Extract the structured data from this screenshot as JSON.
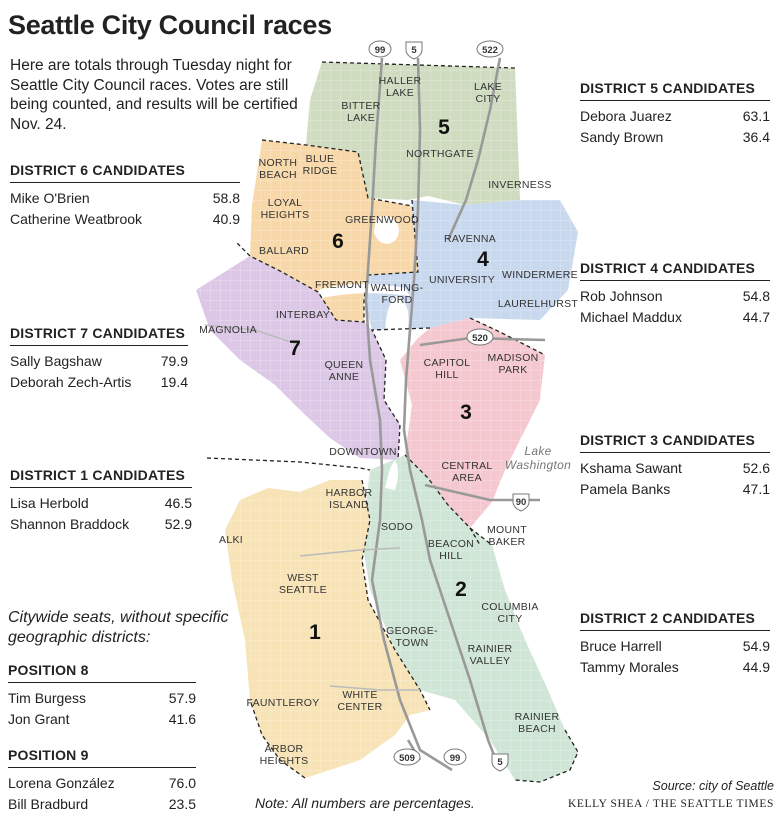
{
  "title": "Seattle City Council races",
  "intro": "Here are totals through Tuesday night for Seattle City Council races. Votes are still being counted, and results will be certified Nov. 24.",
  "districts": {
    "d5": {
      "header": "DISTRICT 5 CANDIDATES",
      "candidates": [
        {
          "name": "Debora Juarez",
          "pct": "63.1"
        },
        {
          "name": "Sandy Brown",
          "pct": "36.4"
        }
      ]
    },
    "d6": {
      "header": "DISTRICT 6 CANDIDATES",
      "candidates": [
        {
          "name": "Mike O'Brien",
          "pct": "58.8"
        },
        {
          "name": "Catherine Weatbrook",
          "pct": "40.9"
        }
      ]
    },
    "d4": {
      "header": "DISTRICT 4 CANDIDATES",
      "candidates": [
        {
          "name": "Rob Johnson",
          "pct": "54.8"
        },
        {
          "name": "Michael Maddux",
          "pct": "44.7"
        }
      ]
    },
    "d7": {
      "header": "DISTRICT 7 CANDIDATES",
      "candidates": [
        {
          "name": "Sally Bagshaw",
          "pct": "79.9"
        },
        {
          "name": "Deborah Zech-Artis",
          "pct": "19.4"
        }
      ]
    },
    "d3": {
      "header": "DISTRICT 3 CANDIDATES",
      "candidates": [
        {
          "name": "Kshama Sawant",
          "pct": "52.6"
        },
        {
          "name": "Pamela Banks",
          "pct": "47.1"
        }
      ]
    },
    "d1": {
      "header": "DISTRICT 1 CANDIDATES",
      "candidates": [
        {
          "name": "Lisa Herbold",
          "pct": "46.5"
        },
        {
          "name": "Shannon Braddock",
          "pct": "52.9"
        }
      ]
    },
    "d2": {
      "header": "DISTRICT 2 CANDIDATES",
      "candidates": [
        {
          "name": "Bruce Harrell",
          "pct": "54.9"
        },
        {
          "name": "Tammy Morales",
          "pct": "44.9"
        }
      ]
    }
  },
  "citywide_note": "Citywide seats, without specific geographic districts:",
  "positions": {
    "p8": {
      "header": "POSITION 8",
      "candidates": [
        {
          "name": "Tim Burgess",
          "pct": "57.9"
        },
        {
          "name": "Jon Grant",
          "pct": "41.6"
        }
      ]
    },
    "p9": {
      "header": "POSITION 9",
      "candidates": [
        {
          "name": "Lorena González",
          "pct": "76.0"
        },
        {
          "name": "Bill Bradburd",
          "pct": "23.5"
        }
      ]
    }
  },
  "map": {
    "district_numbers": [
      "1",
      "2",
      "3",
      "4",
      "5",
      "6",
      "7"
    ],
    "district_colors": {
      "d1": "#f7e3b5",
      "d2": "#cfe6d6",
      "d3": "#f5c8cf",
      "d4": "#c8d8ef",
      "d5": "#cfdcc0",
      "d6": "#f8d8a8",
      "d7": "#dcc8e6"
    },
    "neighborhoods": {
      "haller_lake": [
        "HALLER",
        "LAKE"
      ],
      "lake_city": [
        "LAKE",
        "CITY"
      ],
      "bitter_lake": [
        "BITTER",
        "LAKE"
      ],
      "northgate": "NORTHGATE",
      "north_beach": [
        "NORTH",
        "BEACH"
      ],
      "blue_ridge": [
        "BLUE",
        "RIDGE"
      ],
      "inverness": "INVERNESS",
      "loyal_heights": [
        "LOYAL",
        "HEIGHTS"
      ],
      "greenwood": "GREENWOOD",
      "ravenna": "RAVENNA",
      "ballard": "BALLARD",
      "university": "UNIVERSITY",
      "windermere": "WINDERMERE",
      "fremont": "FREMONT",
      "wallingford": [
        "WALLING-",
        "FORD"
      ],
      "laurelhurst": "LAURELHURST",
      "interbay": "INTERBAY",
      "magnolia": "MAGNOLIA",
      "capitol_hill": [
        "CAPITOL",
        "HILL"
      ],
      "madison_park": [
        "MADISON",
        "PARK"
      ],
      "queen_anne": [
        "QUEEN",
        "ANNE"
      ],
      "downtown": "DOWNTOWN",
      "lake_washington": [
        "Lake",
        "Washington"
      ],
      "central_area": [
        "CENTRAL",
        "AREA"
      ],
      "harbor_island": [
        "HARBOR",
        "ISLAND"
      ],
      "sodo": "SODO",
      "mount_baker": [
        "MOUNT",
        "BAKER"
      ],
      "alki": "ALKI",
      "beacon_hill": [
        "BEACON",
        "HILL"
      ],
      "west_seattle": [
        "WEST",
        "SEATTLE"
      ],
      "columbia_city": [
        "COLUMBIA",
        "CITY"
      ],
      "georgetown": [
        "GEORGE-",
        "TOWN"
      ],
      "rainier_valley": [
        "RAINIER",
        "VALLEY"
      ],
      "fauntleroy": "FAUNTLEROY",
      "white_center": [
        "WHITE",
        "CENTER"
      ],
      "rainier_beach": [
        "RAINIER",
        "BEACH"
      ],
      "arbor_heights": [
        "ARBOR",
        "HEIGHTS"
      ]
    },
    "highways": {
      "h99_north": "99",
      "i5_north": "5",
      "h522": "522",
      "h520": "520",
      "i90": "90",
      "h509": "509",
      "h99_south": "99",
      "i5_south": "5"
    }
  },
  "note": "Note: All numbers are percentages.",
  "source": "Source: city of Seattle",
  "credit": "KELLY SHEA / THE SEATTLE TIMES"
}
